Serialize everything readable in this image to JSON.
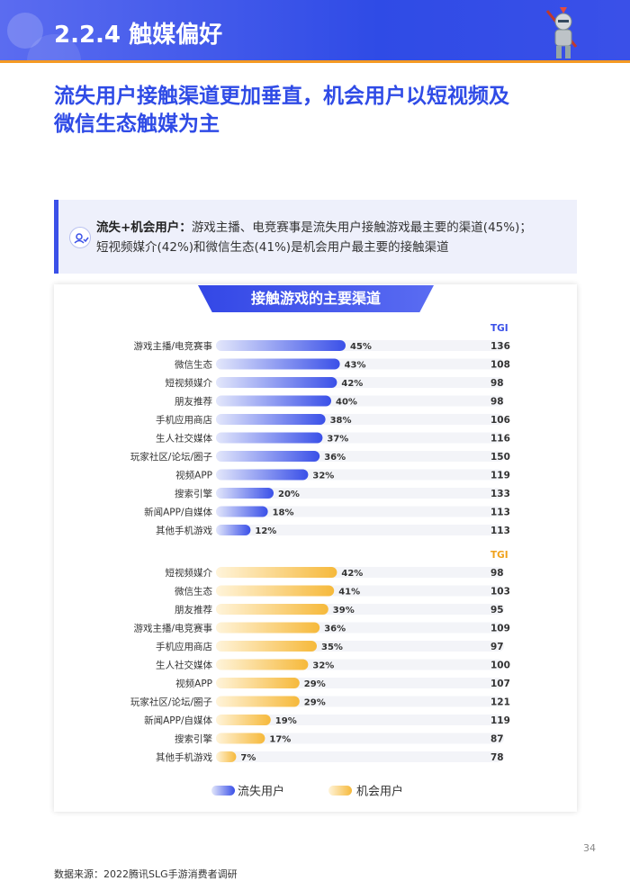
{
  "header": {
    "title": "2.2.4 触媒偏好"
  },
  "subtitle": {
    "line1": "流失用户接触渠道更加垂直，机会用户以短视频及",
    "line2": "微信生态触媒为主"
  },
  "callout": {
    "label": "流失+机会用户：",
    "line1": "游戏主播、电竞赛事是流失用户接触游戏最主要的渠道(45%)；",
    "line2": "短视频媒介(42%)和微信生态(41%)是机会用户最主要的接触渠道"
  },
  "footer": {
    "source": "数据来源：2022腾讯SLG手游消费者调研",
    "page": "34"
  },
  "colors": {
    "lost": "#3a50e8",
    "opportunity": "#f6b93b",
    "track": "#f3f4f8"
  },
  "chart_data": [
    {
      "type": "bar",
      "orientation": "horizontal",
      "title": "接触游戏的主要渠道",
      "series_name": "流失用户",
      "tgi_label": "TGI",
      "categories": [
        "游戏主播/电竞赛事",
        "微信生态",
        "短视频媒介",
        "朋友推荐",
        "手机应用商店",
        "生人社交媒体",
        "玩家社区/论坛/圈子",
        "视频APP",
        "搜索引擎",
        "新闻APP/自媒体",
        "其他手机游戏"
      ],
      "values": [
        45,
        43,
        42,
        40,
        38,
        37,
        36,
        32,
        20,
        18,
        12
      ],
      "labels": [
        "45%",
        "43%",
        "42%",
        "40%",
        "38%",
        "37%",
        "36%",
        "32%",
        "20%",
        "18%",
        "12%"
      ],
      "tgi": [
        "136",
        "108",
        "98",
        "98",
        "106",
        "116",
        "150",
        "119",
        "133",
        "113",
        "113"
      ],
      "xlim": [
        0,
        100
      ]
    },
    {
      "type": "bar",
      "orientation": "horizontal",
      "series_name": "机会用户",
      "tgi_label": "TGI",
      "categories": [
        "短视频媒介",
        "微信生态",
        "朋友推荐",
        "游戏主播/电竞赛事",
        "手机应用商店",
        "生人社交媒体",
        "视频APP",
        "玩家社区/论坛/圈子",
        "新闻APP/自媒体",
        "搜索引擎",
        "其他手机游戏"
      ],
      "values": [
        42,
        41,
        39,
        36,
        35,
        32,
        29,
        29,
        19,
        17,
        7
      ],
      "labels": [
        "42%",
        "41%",
        "39%",
        "36%",
        "35%",
        "32%",
        "29%",
        "29%",
        "19%",
        "17%",
        "7%"
      ],
      "tgi": [
        "98",
        "103",
        "95",
        "109",
        "97",
        "100",
        "107",
        "121",
        "119",
        "87",
        "78"
      ],
      "xlim": [
        0,
        100
      ]
    }
  ],
  "legend": [
    {
      "name": "流失用户",
      "color": "#3a50e8"
    },
    {
      "name": "机会用户",
      "color": "#f6b93b"
    }
  ]
}
